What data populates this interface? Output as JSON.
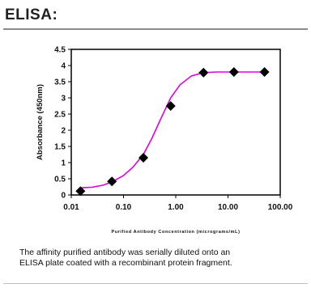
{
  "heading": "ELISA:",
  "caption": {
    "line1": "The affinity purified antibody was serially diluted onto an",
    "line2": "ELISA plate coated with a recombinant protein fragment."
  },
  "chart_data": {
    "type": "scatter",
    "title": "",
    "xlabel": "Purified Antibody Concentration (micrograms/mL)",
    "ylabel": "Absorbance (450nm)",
    "x_scale": "log",
    "xlim": [
      0.01,
      100
    ],
    "ylim": [
      0,
      4.5
    ],
    "x_ticks": [
      "0.01",
      "0.10",
      "1.00",
      "10.00",
      "100.00"
    ],
    "y_ticks": [
      "0",
      "0.5",
      "1",
      "1.5",
      "2",
      "2.5",
      "3",
      "3.5",
      "4",
      "4.5"
    ],
    "grid": false,
    "legend": "none",
    "series": [
      {
        "marker": "diamond",
        "color": "#000000",
        "x": [
          0.015,
          0.06,
          0.24,
          0.8,
          3.4,
          13,
          50
        ],
        "y": [
          0.12,
          0.42,
          1.15,
          2.75,
          3.78,
          3.8,
          3.8
        ]
      }
    ],
    "fit_curve": {
      "color": "#e000e0",
      "x": [
        0.015,
        0.025,
        0.04,
        0.06,
        0.1,
        0.15,
        0.24,
        0.35,
        0.5,
        0.8,
        1.2,
        2,
        3.4,
        6,
        13,
        25,
        50
      ],
      "y": [
        0.22,
        0.24,
        0.3,
        0.4,
        0.6,
        0.85,
        1.25,
        1.75,
        2.3,
        3.0,
        3.4,
        3.68,
        3.78,
        3.8,
        3.8,
        3.8,
        3.8
      ]
    }
  }
}
